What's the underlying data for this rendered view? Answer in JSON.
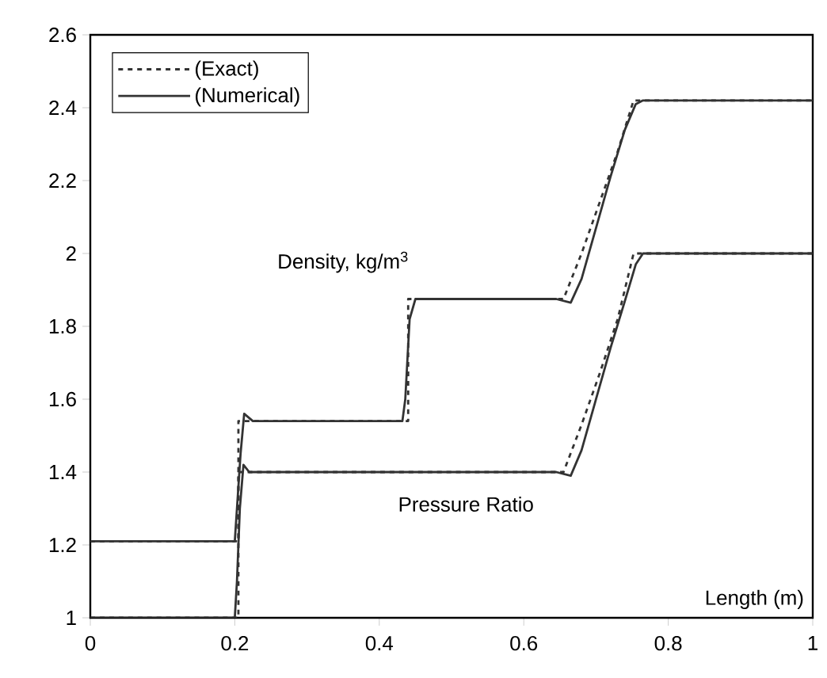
{
  "chart_data": {
    "type": "line",
    "xlabel": "Length (m)",
    "xlim": [
      0,
      1
    ],
    "ylim": [
      1,
      2.6
    ],
    "xticks": [
      0,
      0.2,
      0.4,
      0.6,
      0.8,
      1
    ],
    "yticks": [
      1,
      1.2,
      1.4,
      1.6,
      1.8,
      2,
      2.2,
      2.4,
      2.6
    ],
    "legend": "top left",
    "series": [
      {
        "name": "(Exact)",
        "color": "#333333",
        "line_style": "dashed",
        "x": [
          0,
          0.205,
          0.205,
          0.44,
          0.44,
          0.655,
          0.68,
          0.705,
          0.73,
          0.752,
          1
        ],
        "values": [
          1.21,
          1.21,
          1.54,
          1.54,
          1.875,
          1.875,
          2.0,
          2.14,
          2.28,
          2.42,
          2.42
        ]
      },
      {
        "name": "(Numerical)",
        "color": "#333333",
        "line_style": "solid",
        "x": [
          0,
          0.2,
          0.203,
          0.208,
          0.213,
          0.225,
          0.432,
          0.436,
          0.442,
          0.45,
          0.645,
          0.665,
          0.68,
          0.7,
          0.72,
          0.74,
          0.755,
          0.765,
          1
        ],
        "values": [
          1.21,
          1.21,
          1.3,
          1.45,
          1.56,
          1.54,
          1.54,
          1.6,
          1.82,
          1.875,
          1.875,
          1.865,
          1.93,
          2.07,
          2.21,
          2.34,
          2.41,
          2.42,
          2.42
        ]
      },
      {
        "color": "#333333",
        "line_style": "dashed",
        "x": [
          0,
          0.205,
          0.205,
          0.655,
          0.68,
          0.705,
          0.73,
          0.752,
          1
        ],
        "values": [
          1,
          1,
          1.4,
          1.4,
          1.53,
          1.67,
          1.82,
          2.0,
          2.0
        ]
      },
      {
        "color": "#333333",
        "line_style": "solid",
        "x": [
          0,
          0.2,
          0.203,
          0.207,
          0.212,
          0.22,
          0.645,
          0.665,
          0.68,
          0.7,
          0.72,
          0.74,
          0.755,
          0.765,
          1
        ],
        "values": [
          1,
          1,
          1.1,
          1.3,
          1.42,
          1.4,
          1.4,
          1.39,
          1.46,
          1.6,
          1.74,
          1.87,
          1.97,
          2.0,
          2.0
        ]
      }
    ],
    "annotations": [
      "Density, kg/m$^{3}$",
      "Pressure Ratio"
    ]
  }
}
